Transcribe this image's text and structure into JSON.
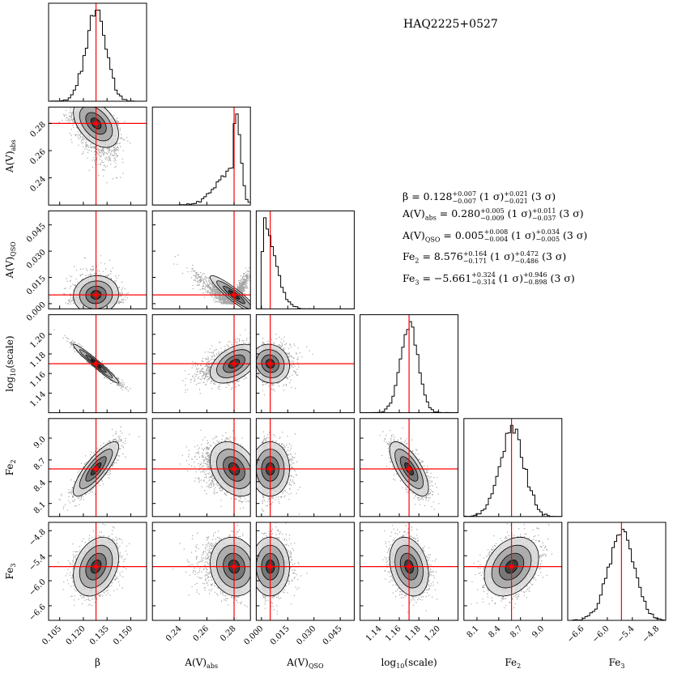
{
  "chart_data": {
    "type": "corner",
    "title": "HAQ2225+0527",
    "parameters": [
      {
        "key": "beta",
        "label": "β",
        "sub": "",
        "range": [
          0.098,
          0.16
        ],
        "ticks": [
          0.105,
          0.12,
          0.135,
          0.15
        ],
        "tick_labels": [
          "0.105",
          "0.120",
          "0.135",
          "0.150"
        ],
        "best": 0.128,
        "sigma": 0.0065
      },
      {
        "key": "avabs",
        "label": "A(V)",
        "sub": "abs",
        "range": [
          0.22,
          0.292
        ],
        "ticks": [
          0.24,
          0.26,
          0.28
        ],
        "tick_labels": [
          "0.24",
          "0.26",
          "0.28"
        ],
        "best": 0.28,
        "sigma": 0.008
      },
      {
        "key": "avqso",
        "label": "A(V)",
        "sub": "QSO",
        "range": [
          -0.003,
          0.053
        ],
        "ticks": [
          0.0,
          0.015,
          0.03,
          0.045
        ],
        "tick_labels": [
          "0.000",
          "0.015",
          "0.030",
          "0.045"
        ],
        "best": 0.005,
        "sigma": 0.005
      },
      {
        "key": "logscale",
        "label": "log",
        "sub": "10",
        "label_suffix": "(scale)",
        "range": [
          1.12,
          1.22
        ],
        "ticks": [
          1.14,
          1.16,
          1.18,
          1.2
        ],
        "tick_labels": [
          "1.14",
          "1.16",
          "1.18",
          "1.20"
        ],
        "best": 1.17,
        "sigma": 0.009
      },
      {
        "key": "fe2",
        "label": "Fe",
        "sub": "2",
        "range": [
          7.92,
          9.27
        ],
        "ticks": [
          8.1,
          8.4,
          8.7,
          9.0
        ],
        "tick_labels": [
          "8.1",
          "8.4",
          "8.7",
          "9.0"
        ],
        "best": 8.576,
        "sigma": 0.17
      },
      {
        "key": "fe3",
        "label": "Fe",
        "sub": "3",
        "range": [
          -6.95,
          -4.6
        ],
        "ticks": [
          -6.6,
          -6.0,
          -5.4,
          -4.8
        ],
        "tick_labels": [
          "−6.6",
          "−6.0",
          "−5.4",
          "−4.8"
        ],
        "best": -5.661,
        "sigma": 0.32
      }
    ],
    "correlations": [
      {
        "pair": [
          "avabs",
          "beta"
        ],
        "rho": -0.45
      },
      {
        "pair": [
          "avqso",
          "beta"
        ],
        "rho": 0.05
      },
      {
        "pair": [
          "avqso",
          "avabs"
        ],
        "rho": -0.92
      },
      {
        "pair": [
          "logscale",
          "beta"
        ],
        "rho": -0.97
      },
      {
        "pair": [
          "logscale",
          "avabs"
        ],
        "rho": 0.45
      },
      {
        "pair": [
          "logscale",
          "avqso"
        ],
        "rho": -0.1
      },
      {
        "pair": [
          "fe2",
          "beta"
        ],
        "rho": 0.82
      },
      {
        "pair": [
          "fe2",
          "avabs"
        ],
        "rho": -0.3
      },
      {
        "pair": [
          "fe2",
          "avqso"
        ],
        "rho": 0.0
      },
      {
        "pair": [
          "fe2",
          "logscale"
        ],
        "rho": -0.7
      },
      {
        "pair": [
          "fe3",
          "beta"
        ],
        "rho": 0.3
      },
      {
        "pair": [
          "fe3",
          "avabs"
        ],
        "rho": -0.1
      },
      {
        "pair": [
          "fe3",
          "avqso"
        ],
        "rho": 0.0
      },
      {
        "pair": [
          "fe3",
          "logscale"
        ],
        "rho": -0.25
      },
      {
        "pair": [
          "fe3",
          "fe2"
        ],
        "rho": 0.3
      }
    ],
    "marker_color": "#ff0000"
  },
  "stats": {
    "beta": {
      "name": "β",
      "sub": "",
      "value": "0.128",
      "up1": "+0.007",
      "lo1": "−0.007",
      "up3": "+0.021",
      "lo3": "−0.021"
    },
    "avabs": {
      "name": "A(V)",
      "sub": "abs",
      "value": "0.280",
      "up1": "+0.005",
      "lo1": "−0.009",
      "up3": "+0.011",
      "lo3": "−0.037"
    },
    "avqso": {
      "name": "A(V)",
      "sub": "QSO",
      "value": "0.005",
      "up1": "+0.008",
      "lo1": "−0.004",
      "up3": "+0.034",
      "lo3": "−0.005"
    },
    "fe2": {
      "name": "Fe",
      "sub": "2",
      "value": "8.576",
      "up1": "+0.164",
      "lo1": "−0.171",
      "up3": "+0.472",
      "lo3": "−0.486"
    },
    "fe3": {
      "name": "Fe",
      "sub": "3",
      "value": "−5.661",
      "up1": "+0.324",
      "lo1": "−0.314",
      "up3": "+0.946",
      "lo3": "−0.898"
    },
    "sigma1": "(1 σ)",
    "sigma3": "(3 σ)"
  }
}
